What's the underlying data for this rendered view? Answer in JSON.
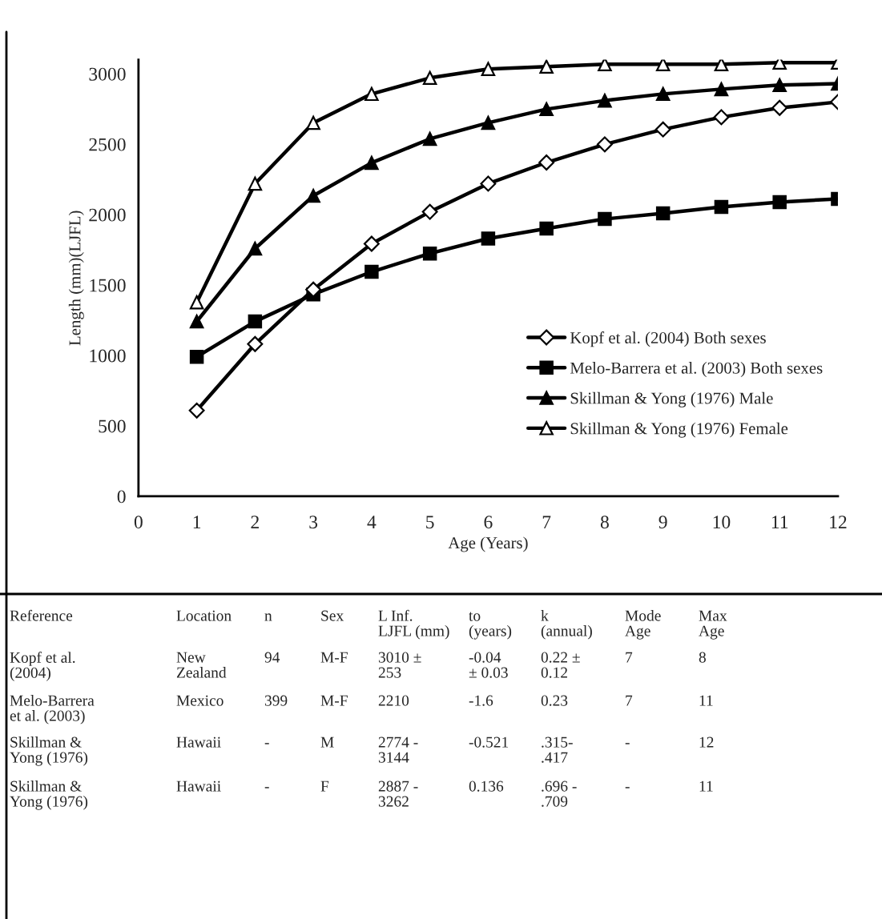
{
  "chart_data": {
    "type": "line",
    "xlabel": "Age (Years)",
    "ylabel": "Length (mm)(LJFL)",
    "x": [
      1,
      2,
      3,
      4,
      5,
      6,
      7,
      8,
      9,
      10,
      11,
      12
    ],
    "xlim": [
      0,
      12
    ],
    "xticks": [
      0,
      1,
      2,
      3,
      4,
      5,
      6,
      7,
      8,
      9,
      10,
      11,
      12
    ],
    "ylim": [
      0,
      3100
    ],
    "yticks": [
      0,
      500,
      1000,
      1500,
      2000,
      2500,
      3000
    ],
    "grid": false,
    "legend": "bottom right",
    "line_style": "solid",
    "series": [
      {
        "name": "Kopf et al. (2004) Both sexes",
        "color": "#000000",
        "marker": "diamond",
        "values": [
          609,
          1081,
          1468,
          1793,
          2020,
          2220,
          2370,
          2499,
          2605,
          2692,
          2758,
          2800
        ]
      },
      {
        "name": "Melo-Barrera et al. (2003) Both sexes",
        "color": "#000000",
        "marker": "square",
        "values": [
          990,
          1241,
          1434,
          1594,
          1724,
          1830,
          1901,
          1969,
          2009,
          2055,
          2089,
          2112
        ]
      },
      {
        "name": "Skillman & Yong (1976) Male",
        "color": "#000000",
        "marker": "triangle",
        "values": [
          1241,
          1759,
          2134,
          2368,
          2538,
          2652,
          2749,
          2810,
          2857,
          2891,
          2920,
          2930
        ]
      },
      {
        "name": "Skillman & Yong (1976) Female",
        "color": "#000000",
        "marker": "triangle",
        "values": [
          1377,
          2220,
          2652,
          2857,
          2971,
          3034,
          3051,
          3068,
          3068,
          3068,
          3079,
          3079
        ]
      }
    ],
    "annotations": [
      "Reference",
      "Location",
      "n",
      "Sex",
      "L Inf.\nLJFL (mm)",
      "to\n(years)",
      "k\n(annual)",
      "Mode\nAge",
      "Max\nAge",
      "Kopf et al.\n(2004)",
      "New\nZealand",
      "94",
      "M-F",
      "3010 ±\n253",
      "-0.04\n± 0.03",
      "0.22 ±\n0.12",
      "7",
      "8",
      "Melo-Barrera\net al. (2003)",
      "Mexico",
      "399",
      "M-F",
      "2210",
      "-1.6",
      "0.23",
      "7",
      "11",
      "Skillman &\nYong (1976)",
      "Hawaii",
      "-",
      "M",
      "2774 -\n3144",
      "-0.521",
      ".315-\n.417",
      "-",
      "12",
      "Skillman &\nYong (1976)",
      "Hawaii",
      "-",
      "F",
      "2887 -\n3262",
      "0.136",
      ".696 -\n.709",
      "-",
      "11"
    ]
  }
}
